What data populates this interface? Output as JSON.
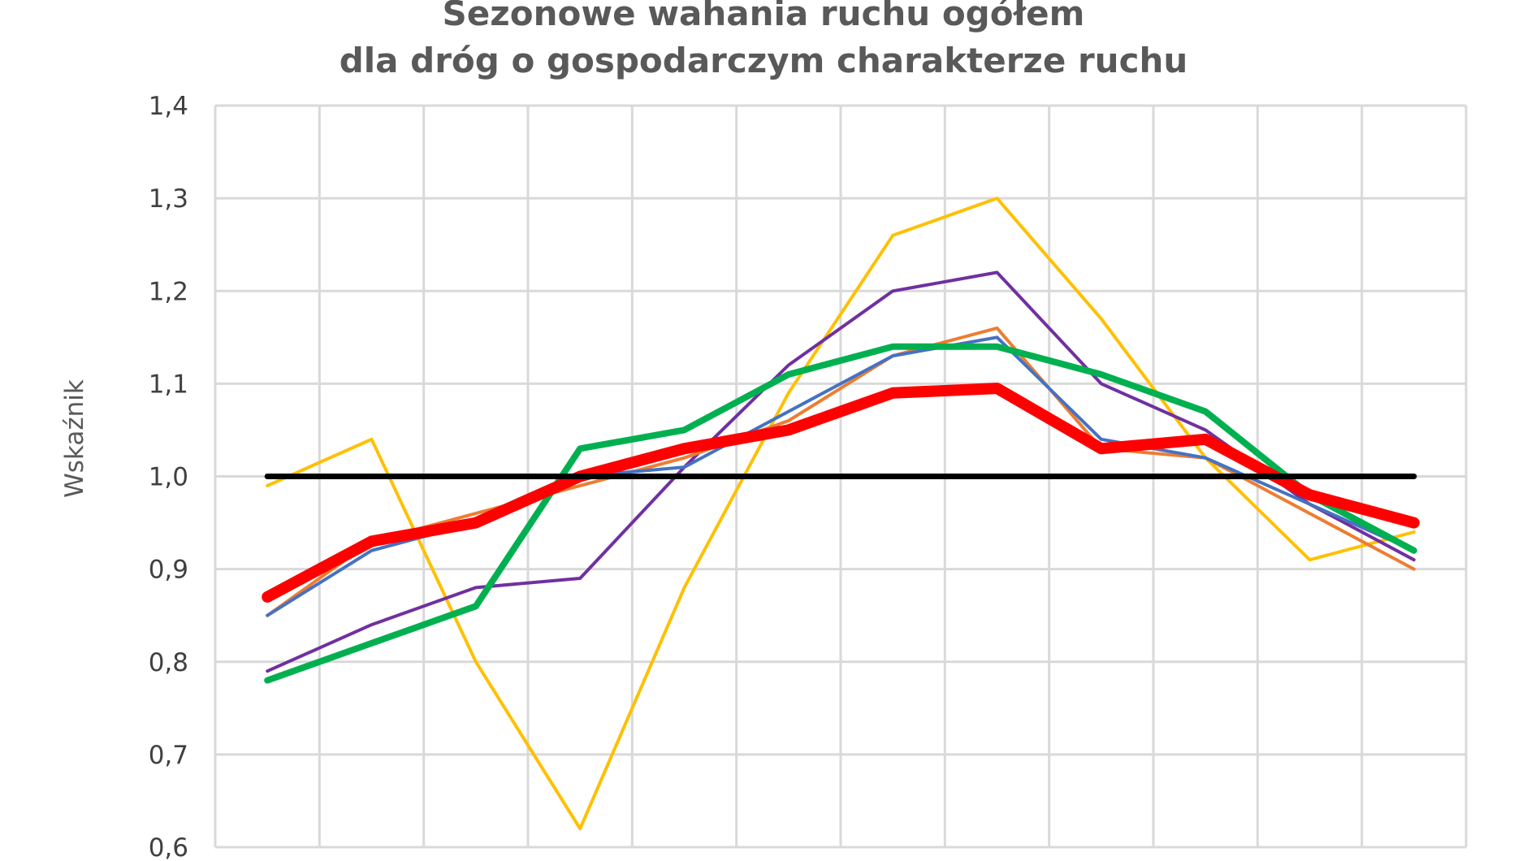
{
  "chart_data": {
    "type": "line",
    "title_lines": [
      "Sezonowe wahania ruchu ogółem",
      "dla dróg o gospodarczym charakterze ruchu"
    ],
    "ylabel": "Wskaźnik",
    "xlabel": "",
    "ylim": [
      0.6,
      1.4
    ],
    "yticks": [
      "0,6",
      "0,7",
      "0,8",
      "0,9",
      "1,0",
      "1,1",
      "1,2",
      "1,3",
      "1,4"
    ],
    "ytick_values": [
      0.6,
      0.7,
      0.8,
      0.9,
      1.0,
      1.1,
      1.2,
      1.3,
      1.4
    ],
    "x": [
      1,
      2,
      3,
      4,
      5,
      6,
      7,
      8,
      9,
      10,
      11,
      12
    ],
    "grid": true,
    "legend": "none",
    "series": [
      {
        "color": "#FFC000",
        "width": 4,
        "values": [
          0.99,
          1.04,
          0.8,
          0.62,
          0.88,
          1.09,
          1.26,
          1.3,
          1.17,
          1.02,
          0.91,
          0.94
        ]
      },
      {
        "color": "#7030A0",
        "width": 4,
        "values": [
          0.79,
          0.84,
          0.88,
          0.89,
          1.01,
          1.12,
          1.2,
          1.22,
          1.1,
          1.05,
          0.97,
          0.91
        ]
      },
      {
        "color": "#ED7D31",
        "width": 4,
        "values": [
          0.85,
          0.93,
          0.96,
          0.99,
          1.02,
          1.06,
          1.13,
          1.16,
          1.03,
          1.02,
          0.96,
          0.9
        ]
      },
      {
        "color": "#4472C4",
        "width": 4,
        "values": [
          0.85,
          0.92,
          0.95,
          1.0,
          1.01,
          1.07,
          1.13,
          1.15,
          1.04,
          1.02,
          0.97,
          0.92
        ]
      },
      {
        "color": "#00B050",
        "width": 8,
        "values": [
          0.78,
          0.82,
          0.86,
          1.03,
          1.05,
          1.11,
          1.14,
          1.14,
          1.11,
          1.07,
          0.98,
          0.92
        ]
      },
      {
        "color": "#FF0000",
        "width": 14,
        "values": [
          0.87,
          0.93,
          0.95,
          1.0,
          1.03,
          1.05,
          1.09,
          1.095,
          1.03,
          1.04,
          0.98,
          0.95
        ]
      },
      {
        "color": "#000000",
        "width": 7,
        "values": [
          1.0,
          1.0,
          1.0,
          1.0,
          1.0,
          1.0,
          1.0,
          1.0,
          1.0,
          1.0,
          1.0,
          1.0
        ]
      }
    ]
  }
}
